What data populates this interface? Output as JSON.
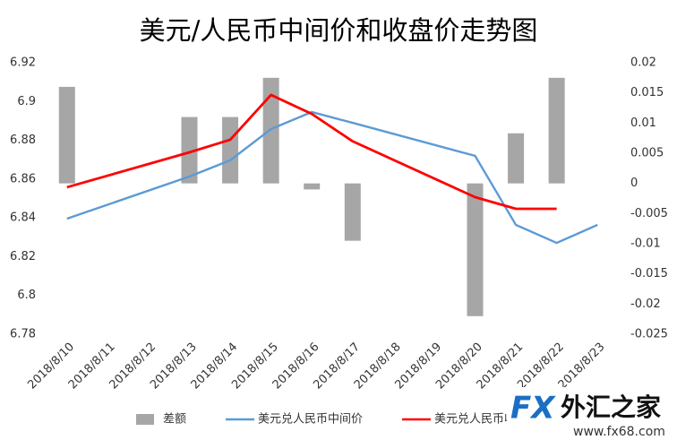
{
  "chart_data": {
    "type": "bar-line",
    "title": "美元/人民币中间价和收盘价走势图",
    "categories": [
      "2018/8/10",
      "2018/8/11",
      "2018/8/12",
      "2018/8/13",
      "2018/8/14",
      "2018/8/15",
      "2018/8/16",
      "2018/8/17",
      "2018/8/18",
      "2018/8/19",
      "2018/8/20",
      "2018/8/21",
      "2018/8/22",
      "2018/8/23"
    ],
    "series": [
      {
        "name": "差额",
        "type": "bar",
        "axis": "y2",
        "color": "#a6a6a6",
        "values": [
          0.016,
          null,
          null,
          0.011,
          0.011,
          0.0175,
          -0.001,
          -0.0095,
          null,
          null,
          -0.022,
          0.0083,
          0.0175,
          null
        ]
      },
      {
        "name": "美元兑人民币中间价",
        "type": "line",
        "color": "#5b9bd5",
        "values": [
          6.8396,
          null,
          null,
          6.8613,
          6.8697,
          6.8858,
          6.8946,
          6.889,
          null,
          null,
          6.872,
          6.8364,
          6.8271,
          6.8364
        ]
      },
      {
        "name": "美元兑人民币收盘价",
        "type": "line",
        "color": "#ff0000",
        "values": [
          6.8558,
          null,
          null,
          6.8738,
          6.8803,
          6.9034,
          6.8936,
          6.8795,
          null,
          null,
          6.8507,
          6.8447,
          6.8447,
          null
        ]
      }
    ],
    "ylim": [
      6.78,
      6.92
    ],
    "yticks": [
      6.78,
      6.8,
      6.82,
      6.84,
      6.86,
      6.88,
      6.9,
      6.92
    ],
    "y2lim": [
      -0.025,
      0.02
    ],
    "y2ticks": [
      -0.025,
      -0.02,
      -0.015,
      -0.01,
      -0.005,
      0,
      0.005,
      0.01,
      0.015,
      0.02
    ],
    "span_gaps": true,
    "legend": "bottom",
    "logo": {
      "mark": "FX",
      "name": "外汇之家",
      "url": "www.fx68.com"
    }
  }
}
